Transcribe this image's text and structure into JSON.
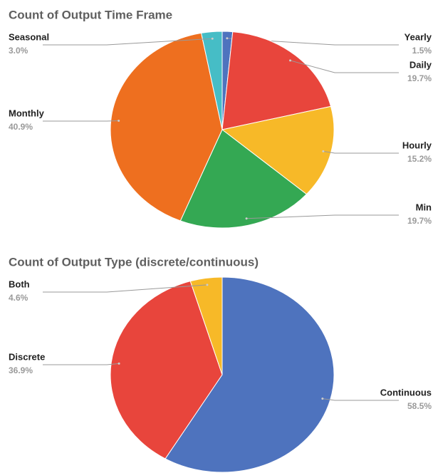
{
  "chart_data": [
    {
      "type": "pie",
      "title": "Count of Output Time Frame",
      "categories": [
        "Yearly",
        "Daily",
        "Hourly",
        "Min",
        "Monthly",
        "Seasonal"
      ],
      "values": [
        1.5,
        19.7,
        15.2,
        19.7,
        40.9,
        3.0
      ],
      "value_labels": [
        "1.5%",
        "19.7%",
        "15.2%",
        "19.7%",
        "40.9%",
        "3.0%"
      ],
      "colors": [
        "#4e73be",
        "#e8453c",
        "#f7b928",
        "#34a853",
        "#ee6f1f",
        "#46bdc6"
      ]
    },
    {
      "type": "pie",
      "title": "Count of Output Type (discrete/continuous)",
      "categories": [
        "Continuous",
        "Discrete",
        "Both"
      ],
      "values": [
        58.5,
        36.9,
        4.6
      ],
      "value_labels": [
        "58.5%",
        "36.9%",
        "4.6%"
      ],
      "colors": [
        "#4e73be",
        "#e8453c",
        "#f7b928"
      ]
    }
  ]
}
